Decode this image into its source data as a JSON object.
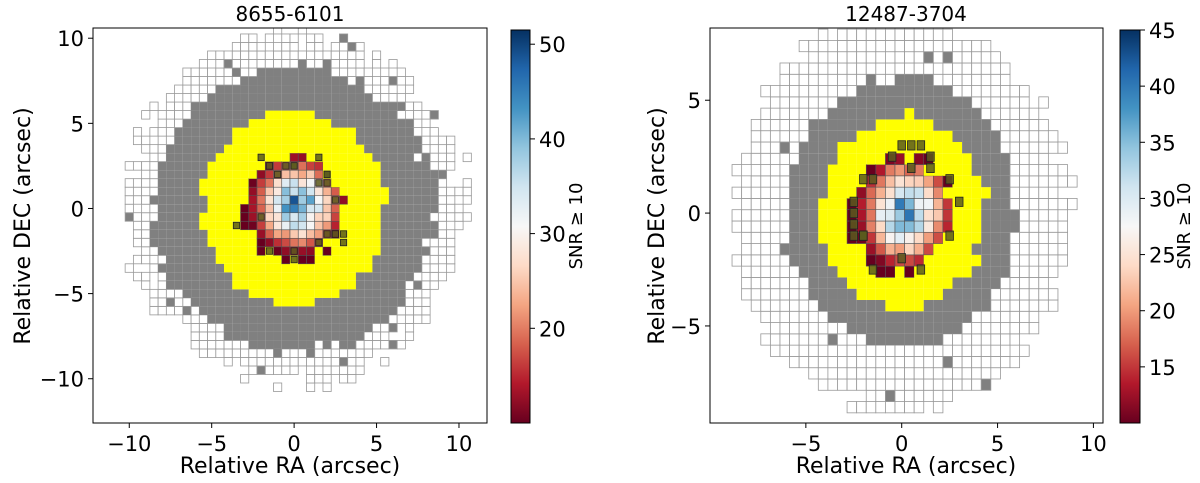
{
  "chart_data": [
    {
      "type": "heatmap",
      "title": "8655-6101",
      "xlabel": "Relative RA (arcsec)",
      "ylabel": "Relative DEC (arcsec)",
      "xlim": [
        -12.2,
        11.7
      ],
      "ylim": [
        -12.6,
        10.6
      ],
      "xticks": [
        -10,
        -5,
        0,
        5,
        10
      ],
      "yticks": [
        -10,
        -5,
        0,
        5,
        10
      ],
      "xticklabels": [
        "−10",
        "−5",
        "0",
        "5",
        "10"
      ],
      "yticklabels": [
        "−10",
        "−5",
        "0",
        "5",
        "10"
      ],
      "spaxel_size": 0.5,
      "regions": {
        "outer_white_radius": 11.0,
        "gray_annulus_outer_radius": 8.5,
        "yellow_outer_radius": 5.6,
        "snr_core_radius": 3.0
      },
      "colorbar": {
        "label": "SNR ≥ 10",
        "range": [
          10,
          51.5
        ],
        "ticks": [
          20,
          30,
          40,
          50
        ],
        "ticklabels": [
          "20",
          "30",
          "40",
          "50"
        ],
        "cmap": "RdBu"
      },
      "colors": {
        "gray": "#808080",
        "yellow": "#ffff00",
        "outline": "#999999",
        "marker": "#5a5a1e"
      }
    },
    {
      "type": "heatmap",
      "title": "12487-3704",
      "xlabel": "Relative RA (arcsec)",
      "ylabel": "Relative DEC (arcsec)",
      "xlim": [
        -10.0,
        10.5
      ],
      "ylim": [
        -9.3,
        8.2
      ],
      "xticks": [
        -5,
        0,
        5,
        10
      ],
      "yticks": [
        -5,
        0,
        5
      ],
      "xticklabels": [
        "−5",
        "0",
        "5",
        "10"
      ],
      "yticklabels": [
        "−5",
        "0",
        "5"
      ],
      "spaxel_size": 0.5,
      "regions": {
        "outer_white_radius": 9.1,
        "gray_annulus_outer_radius": 6.0,
        "yellow_outer_radius": 4.3,
        "snr_core_radius": 2.6
      },
      "colorbar": {
        "label": "SNR ≥ 10",
        "range": [
          10,
          45
        ],
        "ticks": [
          15,
          20,
          25,
          30,
          35,
          40,
          45
        ],
        "ticklabels": [
          "15",
          "20",
          "25",
          "30",
          "35",
          "40",
          "45"
        ],
        "cmap": "RdBu"
      },
      "colors": {
        "gray": "#808080",
        "yellow": "#ffff00",
        "outline": "#999999",
        "marker": "#5a5a1e"
      }
    }
  ]
}
